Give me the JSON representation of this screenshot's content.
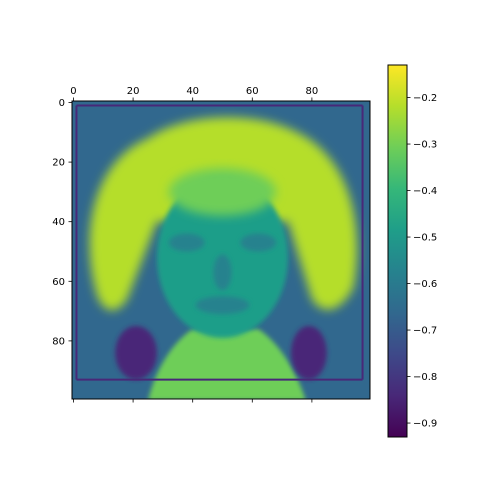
{
  "chart_data": {
    "type": "heatmap",
    "title": "",
    "xlabel": "",
    "ylabel": "",
    "x_ticks": [
      0,
      20,
      40,
      60,
      80
    ],
    "y_ticks": [
      0,
      20,
      40,
      60,
      80
    ],
    "x_tick_labels": [
      "0",
      "20",
      "40",
      "60",
      "80"
    ],
    "y_tick_labels": [
      "0",
      "20",
      "40",
      "60",
      "80"
    ],
    "x_axis_position": "top",
    "xlim": [
      -0.5,
      99.5
    ],
    "ylim": [
      99.5,
      -0.5
    ],
    "image_size": [
      100,
      100
    ],
    "image_content": "grayscale portrait of a smiling person with curly hair",
    "colormap": "viridis",
    "colormap_stops": [
      "#440154",
      "#482878",
      "#3e4989",
      "#31688e",
      "#26828e",
      "#1f9e89",
      "#35b779",
      "#6ece58",
      "#b5de2b",
      "#fde725"
    ],
    "value_range": [
      -0.93,
      -0.13
    ],
    "colorbar": {
      "orientation": "vertical",
      "placement": "right",
      "ticks": [
        -0.9,
        -0.8,
        -0.7,
        -0.6,
        -0.5,
        -0.4,
        -0.3,
        -0.2
      ],
      "tick_labels": [
        "−0.9",
        "−0.8",
        "−0.7",
        "−0.6",
        "−0.5",
        "−0.4",
        "−0.3",
        "−0.2"
      ]
    },
    "grid": false,
    "regions": [
      {
        "label": "background",
        "value": -0.68
      },
      {
        "label": "border-frame",
        "value": -0.8
      },
      {
        "label": "hair",
        "value": -0.2
      },
      {
        "label": "face",
        "value": -0.45
      },
      {
        "label": "shadows",
        "value": -0.58
      },
      {
        "label": "neck",
        "value": -0.35
      },
      {
        "label": "shirt-collar",
        "value": -0.82
      }
    ]
  }
}
